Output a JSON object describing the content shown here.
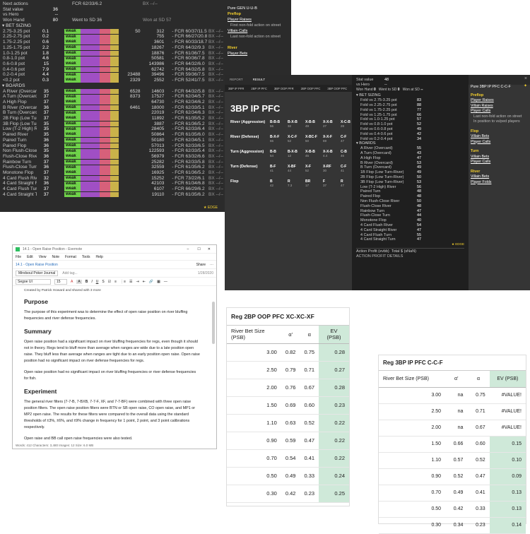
{
  "hudA": {
    "top_rows": [
      {
        "label": "Next actions",
        "v": "",
        "fcr": "FCR 62/33/6.2",
        "bx": "BX --/--"
      },
      {
        "label": "Stat value",
        "v": "36",
        "fcr": "",
        "bx": ""
      },
      {
        "label": "vs Hero",
        "v": "--",
        "fcr": "",
        "bx": ""
      },
      {
        "label": "Won Hand",
        "v": "80",
        "fcr": "Went to SD 36",
        "bx": "Won at SD 57"
      }
    ],
    "bet_title": "BET SIZING",
    "bet_rows": [
      {
        "l": "2.75-3.25 pot",
        "v": "0.1",
        "s": "",
        "n1": "50",
        "n2": "312",
        "fcr": "FCR 60/37/11.5",
        "bx": "BX --/--",
        "w": 0.4
      },
      {
        "l": "2.25-2.75 pot",
        "v": "0.2",
        "s": "",
        "n1": "",
        "n2": "755",
        "fcr": "FCR 66/27/20.8",
        "bx": "BX --/--",
        "w": 0.5
      },
      {
        "l": "1.75-2.25 pot",
        "v": "0.6",
        "s": "",
        "n1": "",
        "n2": "3601",
        "fcr": "FCR 60/33/18.7",
        "bx": "BX --/--",
        "w": 0.6
      },
      {
        "l": "1.25-1.75 pot",
        "v": "2.2",
        "s": "",
        "n1": "",
        "n2": "18267",
        "fcr": "FCR 64/32/9.3",
        "bx": "BX --/--",
        "w": 0.7
      },
      {
        "l": "1.0-1.25 pot",
        "v": "1.8",
        "s": "",
        "n1": "",
        "n2": "18876",
        "fcr": "FCR 61/36/7.5",
        "bx": "BX --/--",
        "w": 0.7
      },
      {
        "l": "0.8-1.0 pot",
        "v": "4.6",
        "s": "",
        "n1": "",
        "n2": "50581",
        "fcr": "FCR 60/36/7.8",
        "bx": "BX --/--",
        "w": 0.8
      },
      {
        "l": "0.6-0.8 pot",
        "v": "15",
        "s": "",
        "n1": "",
        "n2": "143986",
        "fcr": "FCR 64/32/6.0",
        "bx": "BX --/--",
        "w": 0.85
      },
      {
        "l": "0.4-0.6 pot",
        "v": "7.9",
        "s": "",
        "n1": "",
        "n2": "62742",
        "fcr": "FCR 64/32/5.8",
        "bx": "BX --/--",
        "w": 0.8
      },
      {
        "l": "0.2-0.4 pot",
        "v": "4.4",
        "s": "",
        "n1": "23488",
        "n2": "39496",
        "fcr": "FCR 59/36/7.5",
        "bx": "BX --/--",
        "w": 0.7
      },
      {
        "l": "<0.2 pot",
        "v": "0.3",
        "s": "",
        "n1": "2329",
        "n2": "2552",
        "fcr": "FCR 52/41/7.5",
        "bx": "BX --/--",
        "w": 0.5
      }
    ],
    "boards_title": "BOARDS",
    "board_rows": [
      {
        "l": "A River (Overcard)",
        "v": "35",
        "n1": "6528",
        "n2": "14603",
        "fcr": "FCR 64/32/5.8",
        "bx": "BX --/--"
      },
      {
        "l": "A Turn (Overcard)",
        "v": "37",
        "n1": "8373",
        "n2": "17527",
        "fcr": "FCR 62/34/5.7",
        "bx": "BX --/--"
      },
      {
        "l": "A High Flop",
        "v": "37",
        "n1": "",
        "n2": "64730",
        "fcr": "FCR 62/34/6.2",
        "bx": "BX --/--"
      },
      {
        "l": "B River (Overcard)",
        "v": "36",
        "n1": "6461",
        "n2": "18000",
        "fcr": "FCR 62/33/5.1",
        "bx": "BX --/--"
      },
      {
        "l": "B Turn (Overcard)",
        "v": "37",
        "n1": "",
        "n2": "22019",
        "fcr": "FCR 62/34/6.3",
        "bx": "BX --/--"
      },
      {
        "l": "2B Flop (Low Turn-River)",
        "v": "37",
        "n1": "",
        "n2": "11892",
        "fcr": "FCR 61/35/5.2",
        "bx": "BX --/--"
      },
      {
        "l": "3B Flop (Low Turn-River)",
        "v": "35",
        "n1": "",
        "n2": "3887",
        "fcr": "FCR 61/36/5.2",
        "bx": "BX --/--"
      },
      {
        "l": "Low (T-2 High) River",
        "v": "35",
        "n1": "",
        "n2": "28405",
        "fcr": "FCR 62/33/6.4",
        "bx": "BX --/--"
      },
      {
        "l": "Paired River",
        "v": "35",
        "n1": "",
        "n2": "50864",
        "fcr": "FCR 61/35/6.0",
        "bx": "BX --/--"
      },
      {
        "l": "Paired Turn",
        "v": "36",
        "n1": "",
        "n2": "50180",
        "fcr": "FCR 62/34/5.1",
        "bx": "BX --/--"
      },
      {
        "l": "Paired Flop",
        "v": "36",
        "n1": "",
        "n2": "57013",
        "fcr": "FCR 62/33/6.5",
        "bx": "BX --/--"
      },
      {
        "l": "Non Flush-Close River",
        "v": "35",
        "n1": "",
        "n2": "122593",
        "fcr": "FCR 62/33/5.4",
        "bx": "BX --/--"
      },
      {
        "l": "Flush-Close River",
        "v": "36",
        "n1": "",
        "n2": "56979",
        "fcr": "FCR 63/32/6.6",
        "bx": "BX --/--"
      },
      {
        "l": "Rainbow Turn",
        "v": "37",
        "n1": "",
        "n2": "25282",
        "fcr": "FCR 62/33/5.8",
        "bx": "BX --/--"
      },
      {
        "l": "Flush-Close Turn",
        "v": "36",
        "n1": "",
        "n2": "32559",
        "fcr": "FCR 61/35/6.2",
        "bx": "BX --/--"
      },
      {
        "l": "Monotone Flop",
        "v": "37",
        "n1": "",
        "n2": "16925",
        "fcr": "FCR 61/36/5.2",
        "bx": "BX --/--"
      },
      {
        "l": "4 Card Flush River",
        "v": "32",
        "n1": "",
        "n2": "15252",
        "fcr": "FCR 73/22/6.1",
        "bx": "BX --/--"
      },
      {
        "l": "4 Card Straight River",
        "v": "36",
        "n1": "",
        "n2": "42103",
        "fcr": "FCR 61/34/6.8",
        "bx": "BX --/--"
      },
      {
        "l": "4 Card Flush Turn",
        "v": "37",
        "n1": "",
        "n2": "6107",
        "fcr": "FCR 66/29/6.2",
        "bx": "BX --/--"
      },
      {
        "l": "4 Card Straight Turn",
        "v": "37",
        "n1": "",
        "n2": "19110",
        "fcr": "FCR 61/35/6.2",
        "bx": "BX --/--"
      }
    ],
    "weak_label": "weak",
    "edge": "EDGE",
    "info": {
      "title": "Pure GEN U-U-B",
      "preflop": "Preflop",
      "pr": "Player Raises",
      "pr_sub": "First non-fold action on street",
      "vc": "Villain Calls",
      "vc_sub": "Last non-fold action on street",
      "river": "River",
      "pb": "Player Bets"
    }
  },
  "hudB": {
    "tabs": [
      "REPORT",
      "RESULT"
    ],
    "subtabs": [
      "3BP IP PFR",
      "2BP IP PFC",
      "3BP OOP PFR",
      "2BP OOP PFC",
      "3BP OOP PFC"
    ],
    "title": "3BP IP PFC",
    "grid": [
      {
        "label": "River (Aggression)",
        "cells": [
          [
            "B-B-B",
            "56"
          ],
          [
            "B-X-B",
            "32"
          ],
          [
            "X-B-B",
            "49"
          ],
          [
            "X-X-B",
            "27"
          ],
          [
            "X-C-B",
            "28"
          ]
        ]
      },
      {
        "label": "River (Defense)",
        "cells": [
          [
            "B-X-F",
            "66"
          ],
          [
            "X-C-F",
            "52"
          ],
          [
            "X-BC-F",
            "50"
          ],
          [
            "X-X-F",
            "69"
          ],
          [
            "C-F",
            "47"
          ]
        ]
      },
      {
        "label": "Turn (Aggression)",
        "cells": [
          [
            "B-B",
            "54"
          ],
          [
            "B-X-B",
            "12"
          ],
          [
            "X-B-B",
            "45"
          ],
          [
            "X-X-B",
            "4.4"
          ],
          [
            "C-B",
            "46"
          ]
        ]
      },
      {
        "label": "Turn (Defense)",
        "cells": [
          [
            "B-F",
            "41"
          ],
          [
            "X-BF",
            "44"
          ],
          [
            "X-F",
            "52"
          ],
          [
            "X-RF",
            "30"
          ],
          [
            "C-F",
            "41"
          ]
        ]
      },
      {
        "label": "Flop",
        "cells": [
          [
            "B",
            "42"
          ],
          [
            "R",
            "7.3"
          ],
          [
            "BR",
            "17"
          ],
          [
            "F",
            "37"
          ],
          [
            "R",
            "47"
          ]
        ]
      }
    ],
    "panel": {
      "stat": "Stat value",
      "stat_v": "48",
      "vs": "vs Hero",
      "vs_v": "--",
      "won": "Won Hand",
      "won_v": "0",
      "sd": "Went to SD",
      "sd_v": "0",
      "wsd": "Won at SD",
      "wsd_v": "--",
      "bet_title": "BET SIZING",
      "bets": [
        [
          "Fold vs 2.75-3.25 pot",
          "83"
        ],
        [
          "Fold vs 2.25-2.75 pot",
          "88"
        ],
        [
          "Fold vs 1.75-2.25 pot",
          "77"
        ],
        [
          "Fold vs 1.25-1.75 pot",
          "66"
        ],
        [
          "Fold vs 1.0-1.25 pot",
          "57"
        ],
        [
          "Fold vs 0.8-1.0 pot",
          "52"
        ],
        [
          "Fold vs 0.6-0.8 pot",
          "49"
        ],
        [
          "Fold vs 0.4-0.6 pot",
          "42"
        ],
        [
          "Fold vs 0.2-0.4 pot",
          "34"
        ]
      ],
      "boards_title": "BOARDS",
      "boards": [
        [
          "A River (Overcard)",
          "55"
        ],
        [
          "A Turn (Overcard)",
          "43"
        ],
        [
          "A High Flop",
          "47"
        ],
        [
          "B River (Overcard)",
          "53"
        ],
        [
          "B Turn (Overcard)",
          "49"
        ],
        [
          "1B Flop (Low Turn-River)",
          "49"
        ],
        [
          "2B Flop (Low Turn-River)",
          "50"
        ],
        [
          "3B Flop (Low Turn-River)",
          "53"
        ],
        [
          "Low (T-2 High) River",
          "56"
        ],
        [
          "Paired Turn",
          "48"
        ],
        [
          "Paired Flop",
          "48"
        ],
        [
          "Non Flush-Close River",
          "50"
        ],
        [
          "Flush-Close River",
          "48"
        ],
        [
          "Rainbow Turn",
          "47"
        ],
        [
          "Flush-Close Turn",
          "44"
        ],
        [
          "Monotone Flop",
          "40"
        ],
        [
          "4 Card Flush River",
          "54"
        ],
        [
          "4 Card Straight River",
          "47"
        ],
        [
          "4 Card Flush Turn",
          "55"
        ],
        [
          "4 Card Straight Turn",
          "47"
        ]
      ],
      "edge": "EDGE",
      "ap": "Action Profit (evbb)",
      "ap_total": "Total $ (sNaN)",
      "ap_details": "ACTION PROFIT DETAILS"
    },
    "info": {
      "title": "Pure 3BP IP PFC C-C-F",
      "preflop": "Preflop",
      "pr": "Player Raises",
      "vr": "Villain Raises",
      "pc": "Player Calls",
      "pc_sub1": "Last non-fold action on street",
      "pc_sub2": "In position to vs/ped players",
      "flop": "Flop",
      "vb": "Villain Bets",
      "pc2": "Player Calls",
      "turn": "Turn",
      "vb2": "Villain Bets",
      "pc3": "Player Calls",
      "river": "River",
      "vb3": "Villain Bets",
      "pf": "Player Folds"
    }
  },
  "evernote": {
    "title": "14.1 - Open Raise Position - Evernote",
    "menu": [
      "File",
      "Edit",
      "View",
      "Note",
      "Format",
      "Tools",
      "Help"
    ],
    "note_title": "14.1 - Open Raise Position",
    "share": "Share",
    "notebook": "Mindsoul Poker Journal",
    "date": "1/28/2020",
    "font": "Segoe UI",
    "size": "15",
    "created": "Created by Patrick Howard and shared with 3 more",
    "h_purpose": "Purpose",
    "p_purpose": "The purpose of this experiment was to determine the effect of open raise position on river bluffing frequencies and river defense frequencies.",
    "h_summary": "Summary",
    "p_summary1": "Open raise position had a significant impact on river bluffing frequencies for regs, even though it should not in theory. Regs tend to bluff more than average when ranges are wide due to a late position open raise. They bluff less than average when ranges are tight due to an early position open raise. Open raise position had no significant impact on river defense frequencies for regs.",
    "p_summary2": "Open raise position had no significant impact on river bluffing frequencies or river defense frequencies for fish.",
    "h_experiment": "Experiment",
    "p_experiment1": "The general river filters (7-7-B, 7-BXB, 7-7-F, XF, and 7-7-BF) were combined with three open raise position filters. The open raise position filters were BTN or SB open raise, CO open raise, and MP1 or MP2 open raise. The results for these filters were compared to the overall data using the standard thresholds of ±3%, ±6%, and ±9% change in frequency for 1 point, 2 point, and 3 point calibrations respectively.",
    "p_experiment2": "Open raise and BB call open raise frequencies were also tested.",
    "status": "Words: 412 Characters: 3,480 Images: 12 Size: 6.0 MB"
  },
  "table1": {
    "title": "Reg 2BP OOP PFC XC-XC-XF",
    "headers": [
      "River Bet Size (PSB)",
      "α'",
      "α",
      "EV (PSB)"
    ],
    "rows": [
      [
        "3.00",
        "0.82",
        "0.75",
        "0.28"
      ],
      [
        "2.50",
        "0.79",
        "0.71",
        "0.27"
      ],
      [
        "2.00",
        "0.76",
        "0.67",
        "0.28"
      ],
      [
        "1.50",
        "0.69",
        "0.60",
        "0.23"
      ],
      [
        "1.10",
        "0.63",
        "0.52",
        "0.22"
      ],
      [
        "0.90",
        "0.59",
        "0.47",
        "0.22"
      ],
      [
        "0.70",
        "0.54",
        "0.41",
        "0.22"
      ],
      [
        "0.50",
        "0.49",
        "0.33",
        "0.24"
      ],
      [
        "0.30",
        "0.42",
        "0.23",
        "0.25"
      ]
    ]
  },
  "table2": {
    "title": "Reg 3BP IP PFC C-C-F",
    "headers": [
      "River Bet Size (PSB)",
      "α'",
      "α",
      "EV (PSB)"
    ],
    "rows": [
      [
        "3.00",
        "na",
        "0.75",
        "#VALUE!"
      ],
      [
        "2.50",
        "na",
        "0.71",
        "#VALUE!"
      ],
      [
        "2.00",
        "na",
        "0.67",
        "#VALUE!"
      ],
      [
        "1.50",
        "0.66",
        "0.60",
        "0.15"
      ],
      [
        "1.10",
        "0.57",
        "0.52",
        "0.10"
      ],
      [
        "0.90",
        "0.52",
        "0.47",
        "0.09"
      ],
      [
        "0.70",
        "0.49",
        "0.41",
        "0.13"
      ],
      [
        "0.50",
        "0.42",
        "0.33",
        "0.13"
      ],
      [
        "0.30",
        "0.34",
        "0.23",
        "0.14"
      ]
    ]
  },
  "colors": {
    "weak_green": "#6fd24a",
    "bar_purple": "#a04fc4",
    "bar_pink": "#d7607a",
    "bar_yellow": "#c9b24a",
    "ev_green": "#cfe9d9",
    "gold": "#f5d02c"
  }
}
